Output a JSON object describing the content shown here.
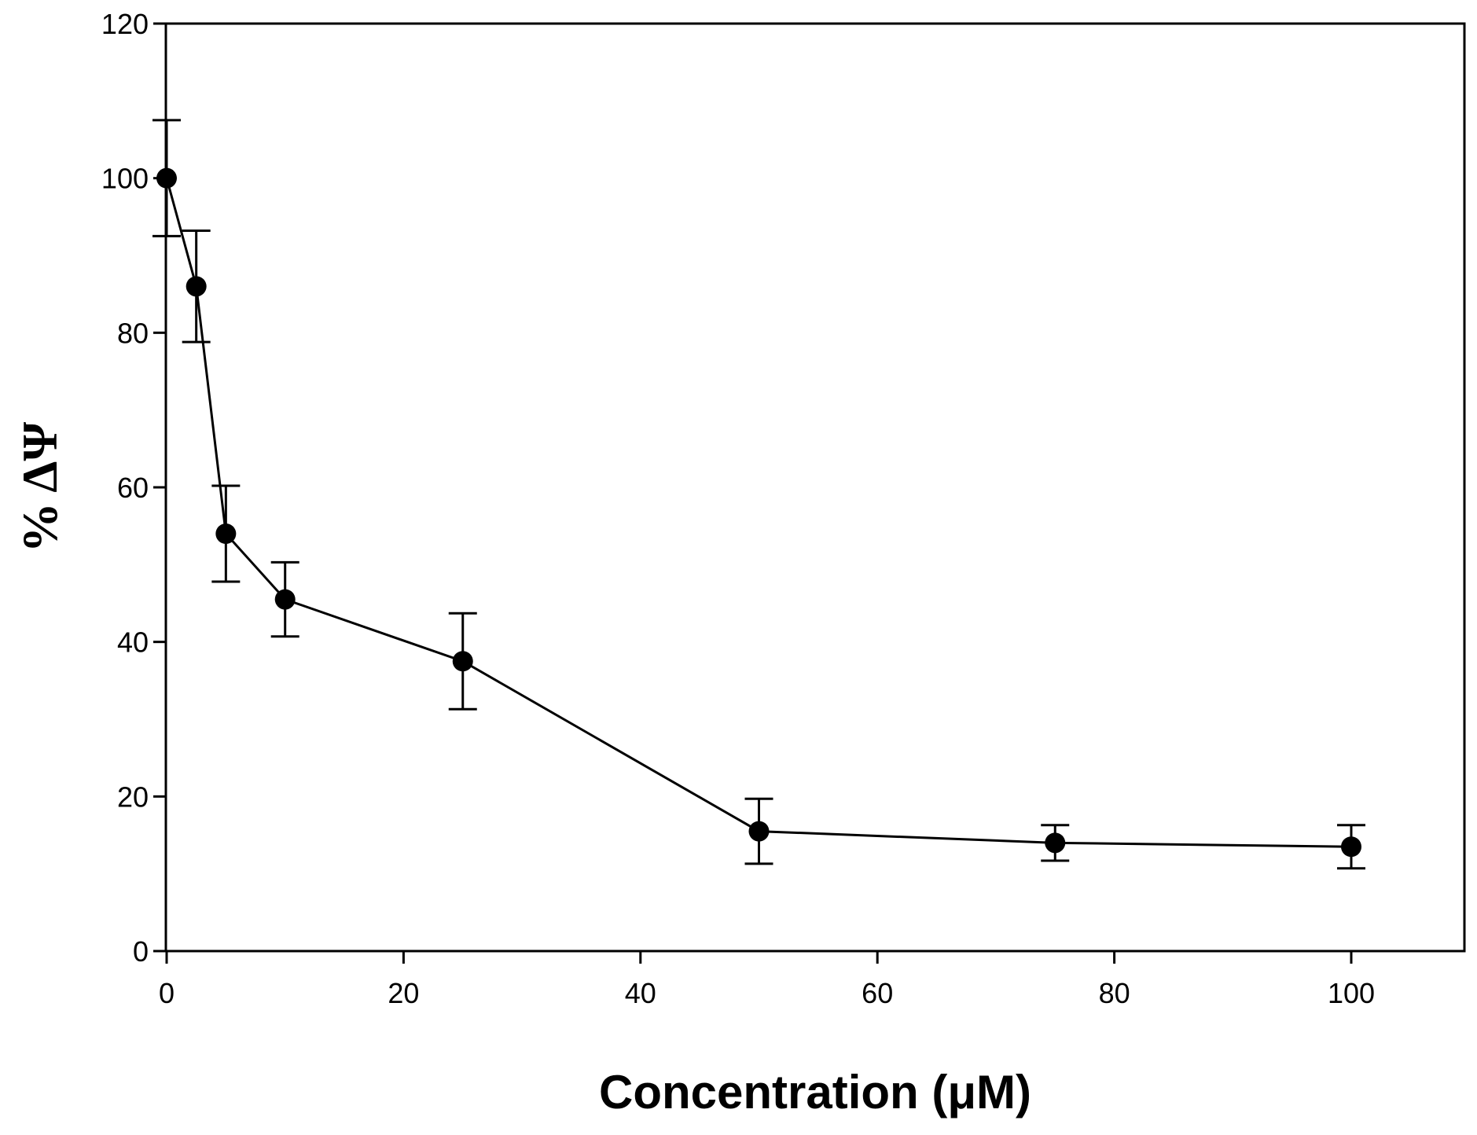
{
  "chart_data": {
    "type": "line",
    "title": "",
    "xlabel": "Concentration (μM)",
    "ylabel": "% ΔΨ",
    "xlim": [
      0,
      110
    ],
    "ylim": [
      0,
      120
    ],
    "xticks": [
      0,
      20,
      40,
      60,
      80,
      100
    ],
    "yticks": [
      0,
      20,
      40,
      60,
      80,
      100,
      120
    ],
    "grid": false,
    "series": [
      {
        "name": "% ΔΨ",
        "x": [
          0,
          2.5,
          5,
          10,
          25,
          50,
          75,
          100
        ],
        "y": [
          100,
          86,
          54,
          45.5,
          37.5,
          15.5,
          14,
          13.5
        ],
        "err": [
          7.5,
          7.2,
          6.2,
          4.8,
          6.2,
          4.2,
          2.3,
          2.8
        ]
      }
    ],
    "colors": {
      "line": "#000000",
      "marker": "#000000",
      "axis": "#000000"
    }
  }
}
